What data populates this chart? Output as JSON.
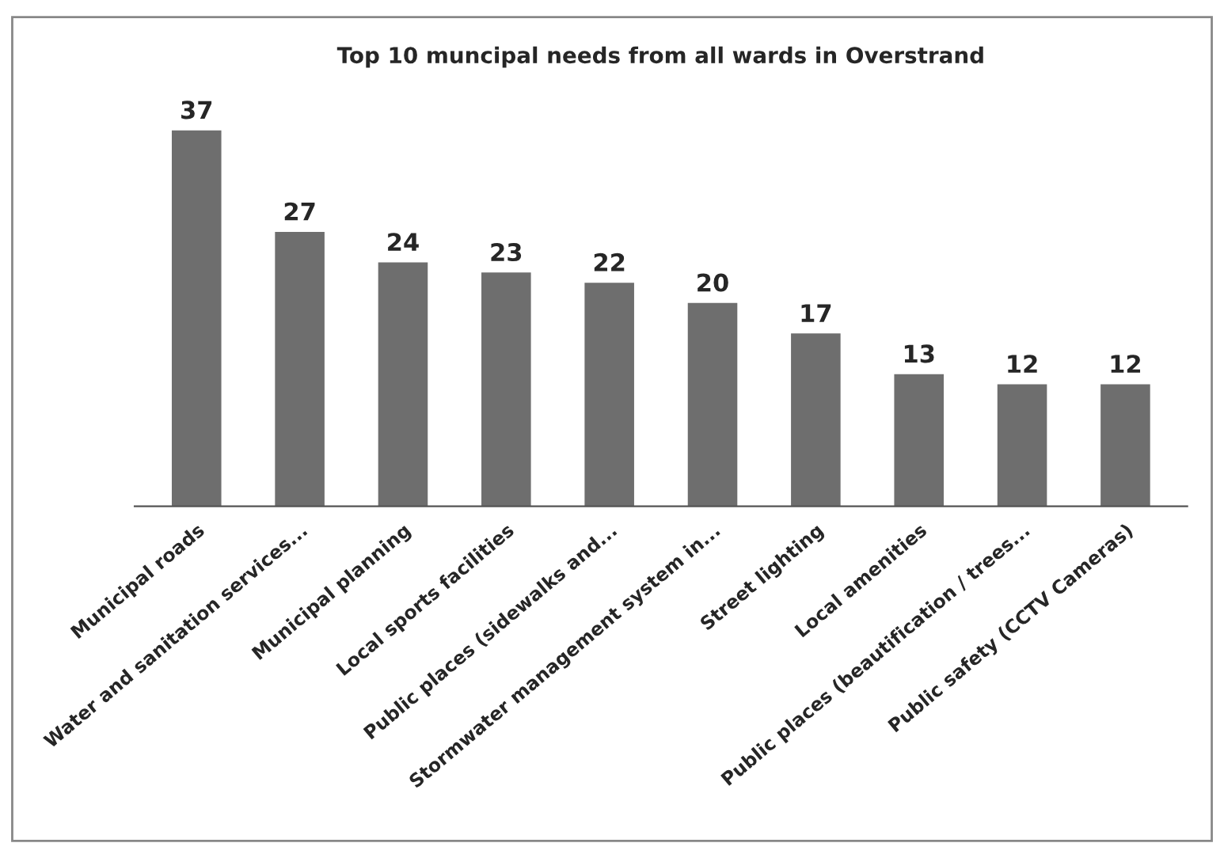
{
  "chart_data": {
    "type": "bar",
    "title": "Top 10 muncipal needs from all wards in Overstrand",
    "categories": [
      "Municipal roads",
      "Water and sanitation services...",
      "Municipal planning",
      "Local sports facilities",
      "Public places (sidewalks and...",
      "Stormwater management system in...",
      "Street lighting",
      "Local amenities",
      "Public places (beautification / trees...",
      "Public safety (CCTV Cameras)"
    ],
    "values": [
      37,
      27,
      24,
      23,
      22,
      20,
      17,
      13,
      12,
      12
    ],
    "color": "#6e6e6e",
    "data_labels": true,
    "grid": false,
    "legend": false
  }
}
